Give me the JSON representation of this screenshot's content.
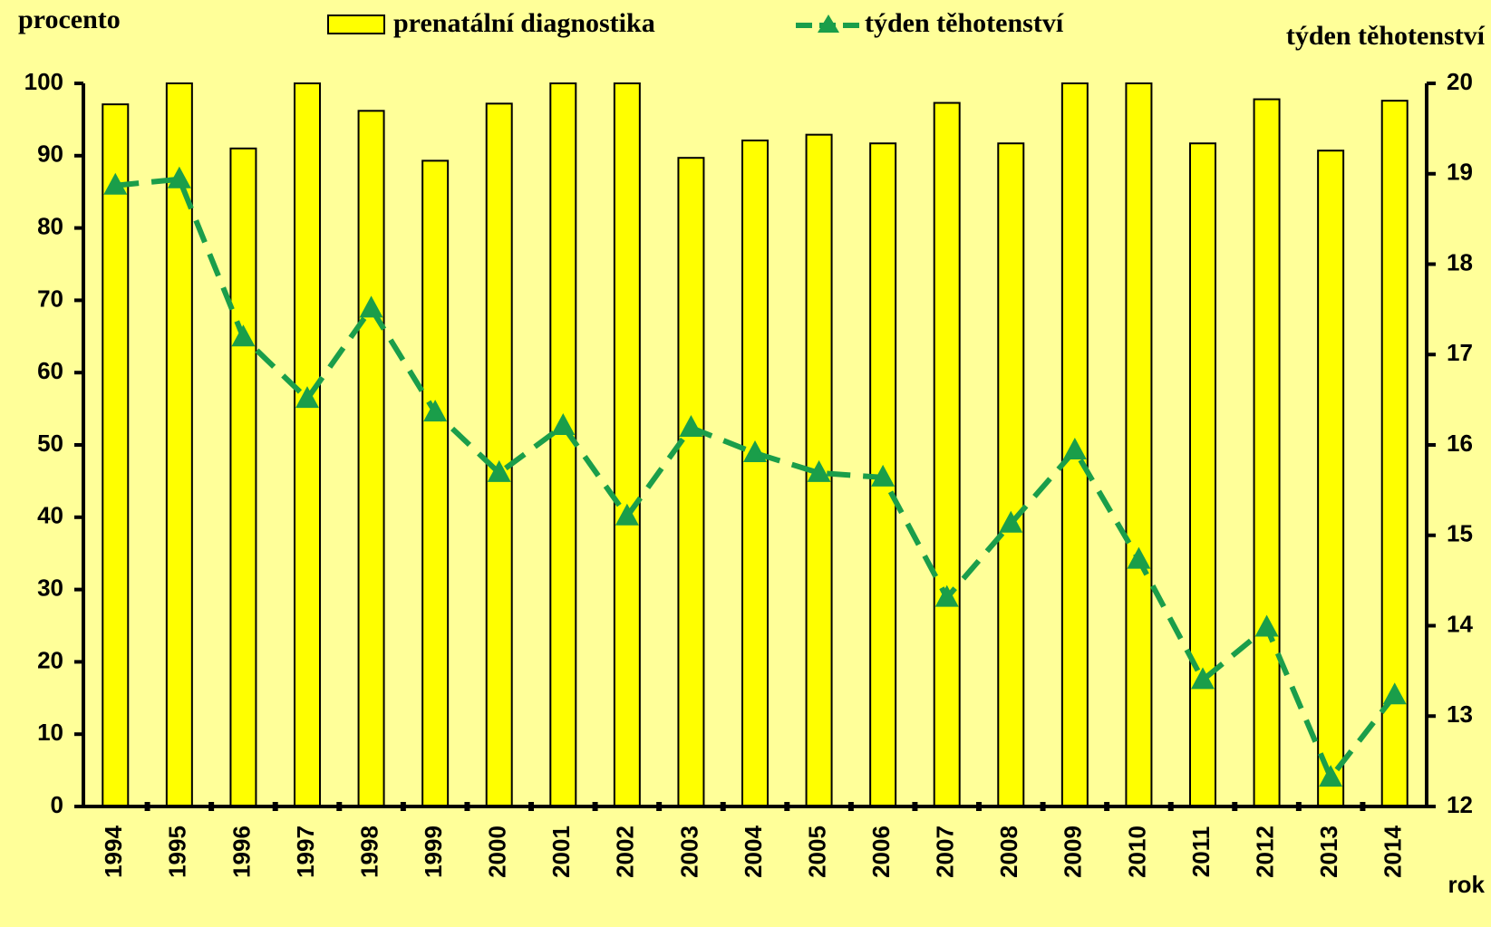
{
  "chart_data": {
    "type": "bar_line",
    "y_label": "procento",
    "y2_label": "týden těhotenství",
    "x_label": "rok",
    "categories": [
      "1994",
      "1995",
      "1996",
      "1997",
      "1998",
      "1999",
      "2000",
      "2001",
      "2002",
      "2003",
      "2004",
      "2005",
      "2006",
      "2007",
      "2008",
      "2009",
      "2010",
      "2011",
      "2012",
      "2013",
      "2014"
    ],
    "series": [
      {
        "name": "prenatální diagnostika",
        "type": "bar",
        "color": "#ffff00",
        "values": [
          97.1,
          100,
          91,
          100,
          96.2,
          89.3,
          97.2,
          100,
          100,
          89.7,
          92.1,
          92.9,
          91.7,
          97.3,
          91.7,
          100,
          100,
          91.7,
          97.8,
          90.7,
          97.6
        ]
      },
      {
        "name": "týden těhotenství",
        "type": "line",
        "axis": "y2",
        "color": "#1a9e4a",
        "values": [
          18.87,
          18.94,
          17.19,
          16.51,
          17.51,
          16.36,
          15.69,
          16.21,
          15.21,
          16.19,
          15.91,
          15.69,
          15.64,
          14.31,
          15.13,
          15.94,
          14.73,
          13.4,
          13.98,
          12.32,
          13.23
        ]
      }
    ],
    "ylim": [
      0,
      100
    ],
    "yticks": [
      0,
      10,
      20,
      30,
      40,
      50,
      60,
      70,
      80,
      90,
      100
    ],
    "y2lim": [
      12,
      20
    ],
    "y2ticks": [
      12,
      13,
      14,
      15,
      16,
      17,
      18,
      19,
      20
    ]
  }
}
